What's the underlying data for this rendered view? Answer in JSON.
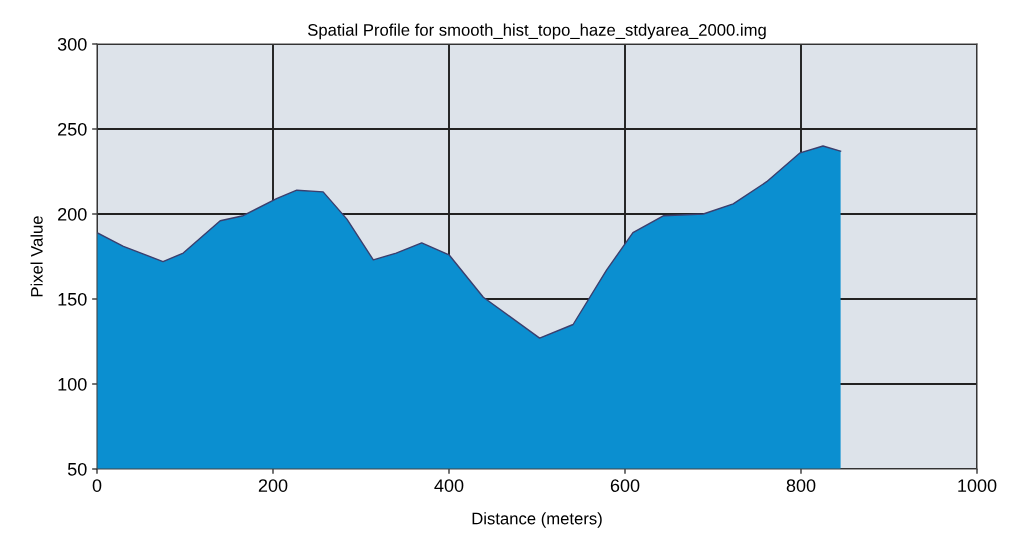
{
  "chart_data": {
    "type": "area",
    "title": "Spatial Profile for smooth_hist_topo_haze_stdyarea_2000.img",
    "xlabel": "Distance (meters)",
    "ylabel": "Pixel Value",
    "x": [
      0,
      30,
      75,
      98,
      140,
      166,
      204,
      227,
      257,
      284,
      314,
      340,
      369,
      400,
      439,
      503,
      541,
      579,
      609,
      644,
      689,
      723,
      761,
      799,
      825,
      845
    ],
    "series": [
      {
        "color": "#0b8fd0",
        "values": [
          189,
          181,
          172,
          177,
          196,
          199,
          209,
          214,
          213,
          197,
          173,
          177,
          183,
          176,
          151,
          127,
          135,
          167,
          189,
          199,
          200,
          206,
          219,
          236,
          240,
          237
        ]
      }
    ],
    "xlim": [
      0,
      1000
    ],
    "ylim": [
      50,
      300
    ],
    "xticks": [
      0,
      200,
      400,
      600,
      800,
      1000
    ],
    "yticks": [
      50,
      100,
      150,
      200,
      250,
      300
    ],
    "grid": true
  }
}
